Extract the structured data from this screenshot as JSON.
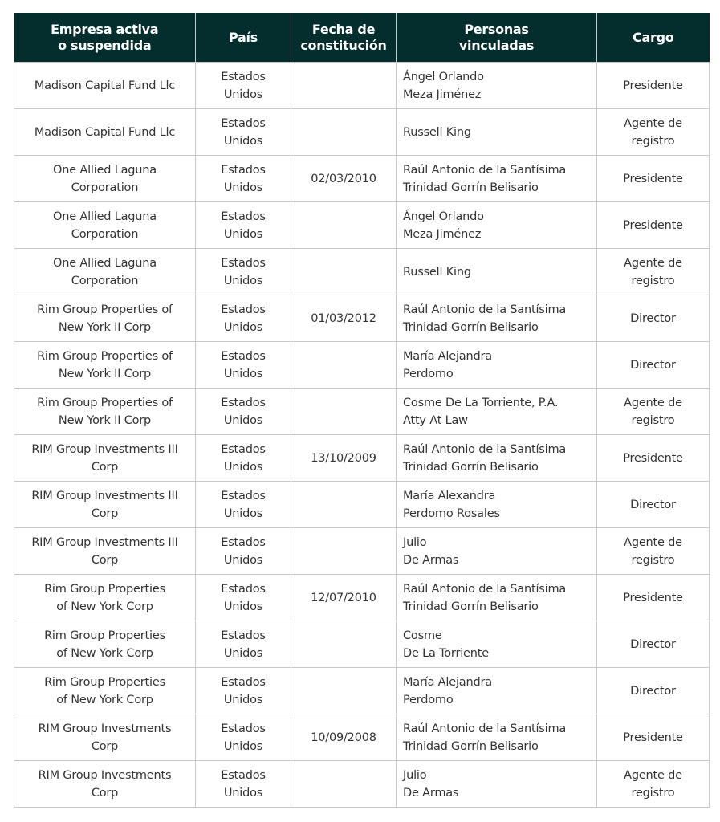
{
  "header": {
    "empresa": [
      "Empresa activa",
      "o suspendida"
    ],
    "pais": "País",
    "fecha": [
      "Fecha de",
      "constitución"
    ],
    "personas": [
      "Personas",
      "vinculadas"
    ],
    "cargo": "Cargo"
  },
  "colors": {
    "header_bg": "#042e2e",
    "border": "#c8c8c8",
    "text": "#333333"
  },
  "rows": [
    {
      "empresa": [
        "Madison Capital Fund Llc"
      ],
      "pais": [
        "Estados",
        "Unidos"
      ],
      "fecha": "",
      "persona": [
        "Ángel Orlando",
        "Meza Jiménez"
      ],
      "cargo": [
        "Presidente"
      ]
    },
    {
      "empresa": [
        "Madison Capital Fund Llc"
      ],
      "pais": [
        "Estados",
        "Unidos"
      ],
      "fecha": "",
      "persona": [
        "Russell King"
      ],
      "cargo": [
        "Agente de",
        "registro"
      ]
    },
    {
      "empresa": [
        "One Allied Laguna",
        "Corporation"
      ],
      "pais": [
        "Estados",
        "Unidos"
      ],
      "fecha": "02/03/2010",
      "persona": [
        "Raúl Antonio de la Santísima",
        "Trinidad Gorrín Belisario"
      ],
      "cargo": [
        "Presidente"
      ]
    },
    {
      "empresa": [
        "One Allied Laguna",
        "Corporation"
      ],
      "pais": [
        "Estados",
        "Unidos"
      ],
      "fecha": "",
      "persona": [
        "Ángel Orlando",
        "Meza Jiménez"
      ],
      "cargo": [
        "Presidente"
      ]
    },
    {
      "empresa": [
        "One Allied Laguna",
        "Corporation"
      ],
      "pais": [
        "Estados",
        "Unidos"
      ],
      "fecha": "",
      "persona": [
        "Russell King"
      ],
      "cargo": [
        "Agente de",
        "registro"
      ]
    },
    {
      "empresa": [
        "Rim Group Properties of",
        "New York II Corp"
      ],
      "pais": [
        "Estados",
        "Unidos"
      ],
      "fecha": "01/03/2012",
      "persona": [
        "Raúl Antonio de la Santísima",
        "Trinidad Gorrín Belisario"
      ],
      "cargo": [
        "Director"
      ]
    },
    {
      "empresa": [
        "Rim Group Properties of",
        "New York II Corp"
      ],
      "pais": [
        "Estados",
        "Unidos"
      ],
      "fecha": "",
      "persona": [
        "María Alejandra",
        "Perdomo"
      ],
      "cargo": [
        "Director"
      ]
    },
    {
      "empresa": [
        "Rim Group Properties of",
        "New York II Corp"
      ],
      "pais": [
        "Estados",
        "Unidos"
      ],
      "fecha": "",
      "persona": [
        "Cosme De La Torriente, P.A.",
        "Atty At Law"
      ],
      "cargo": [
        "Agente de",
        "registro"
      ]
    },
    {
      "empresa": [
        "RIM Group Investments III",
        "Corp"
      ],
      "pais": [
        "Estados",
        "Unidos"
      ],
      "fecha": "13/10/2009",
      "persona": [
        "Raúl Antonio de la Santísima",
        "Trinidad Gorrín Belisario"
      ],
      "cargo": [
        "Presidente"
      ]
    },
    {
      "empresa": [
        "RIM Group Investments III",
        "Corp"
      ],
      "pais": [
        "Estados",
        "Unidos"
      ],
      "fecha": "",
      "persona": [
        "María Alexandra",
        "Perdomo Rosales"
      ],
      "cargo": [
        "Director"
      ]
    },
    {
      "empresa": [
        "RIM Group Investments III",
        "Corp"
      ],
      "pais": [
        "Estados",
        "Unidos"
      ],
      "fecha": "",
      "persona": [
        "Julio",
        "De Armas"
      ],
      "cargo": [
        "Agente de",
        "registro"
      ]
    },
    {
      "empresa": [
        "Rim Group Properties",
        "of New York Corp"
      ],
      "pais": [
        "Estados",
        "Unidos"
      ],
      "fecha": "12/07/2010",
      "persona": [
        "Raúl Antonio de la Santísima",
        "Trinidad Gorrín Belisario"
      ],
      "cargo": [
        "Presidente"
      ]
    },
    {
      "empresa": [
        "Rim Group Properties",
        "of New York Corp"
      ],
      "pais": [
        "Estados",
        "Unidos"
      ],
      "fecha": "",
      "persona": [
        "Cosme",
        "De La Torriente"
      ],
      "cargo": [
        "Director"
      ]
    },
    {
      "empresa": [
        "Rim Group Properties",
        "of New York Corp"
      ],
      "pais": [
        "Estados",
        "Unidos"
      ],
      "fecha": "",
      "persona": [
        "María Alejandra",
        "Perdomo"
      ],
      "cargo": [
        "Director"
      ]
    },
    {
      "empresa": [
        "RIM Group Investments",
        "Corp"
      ],
      "pais": [
        "Estados",
        "Unidos"
      ],
      "fecha": "10/09/2008",
      "persona": [
        "Raúl Antonio de la Santísima",
        "Trinidad Gorrín Belisario"
      ],
      "cargo": [
        "Presidente"
      ]
    },
    {
      "empresa": [
        "RIM Group Investments",
        "Corp"
      ],
      "pais": [
        "Estados",
        "Unidos"
      ],
      "fecha": "",
      "persona": [
        "Julio",
        "De Armas"
      ],
      "cargo": [
        "Agente de",
        "registro"
      ]
    }
  ]
}
